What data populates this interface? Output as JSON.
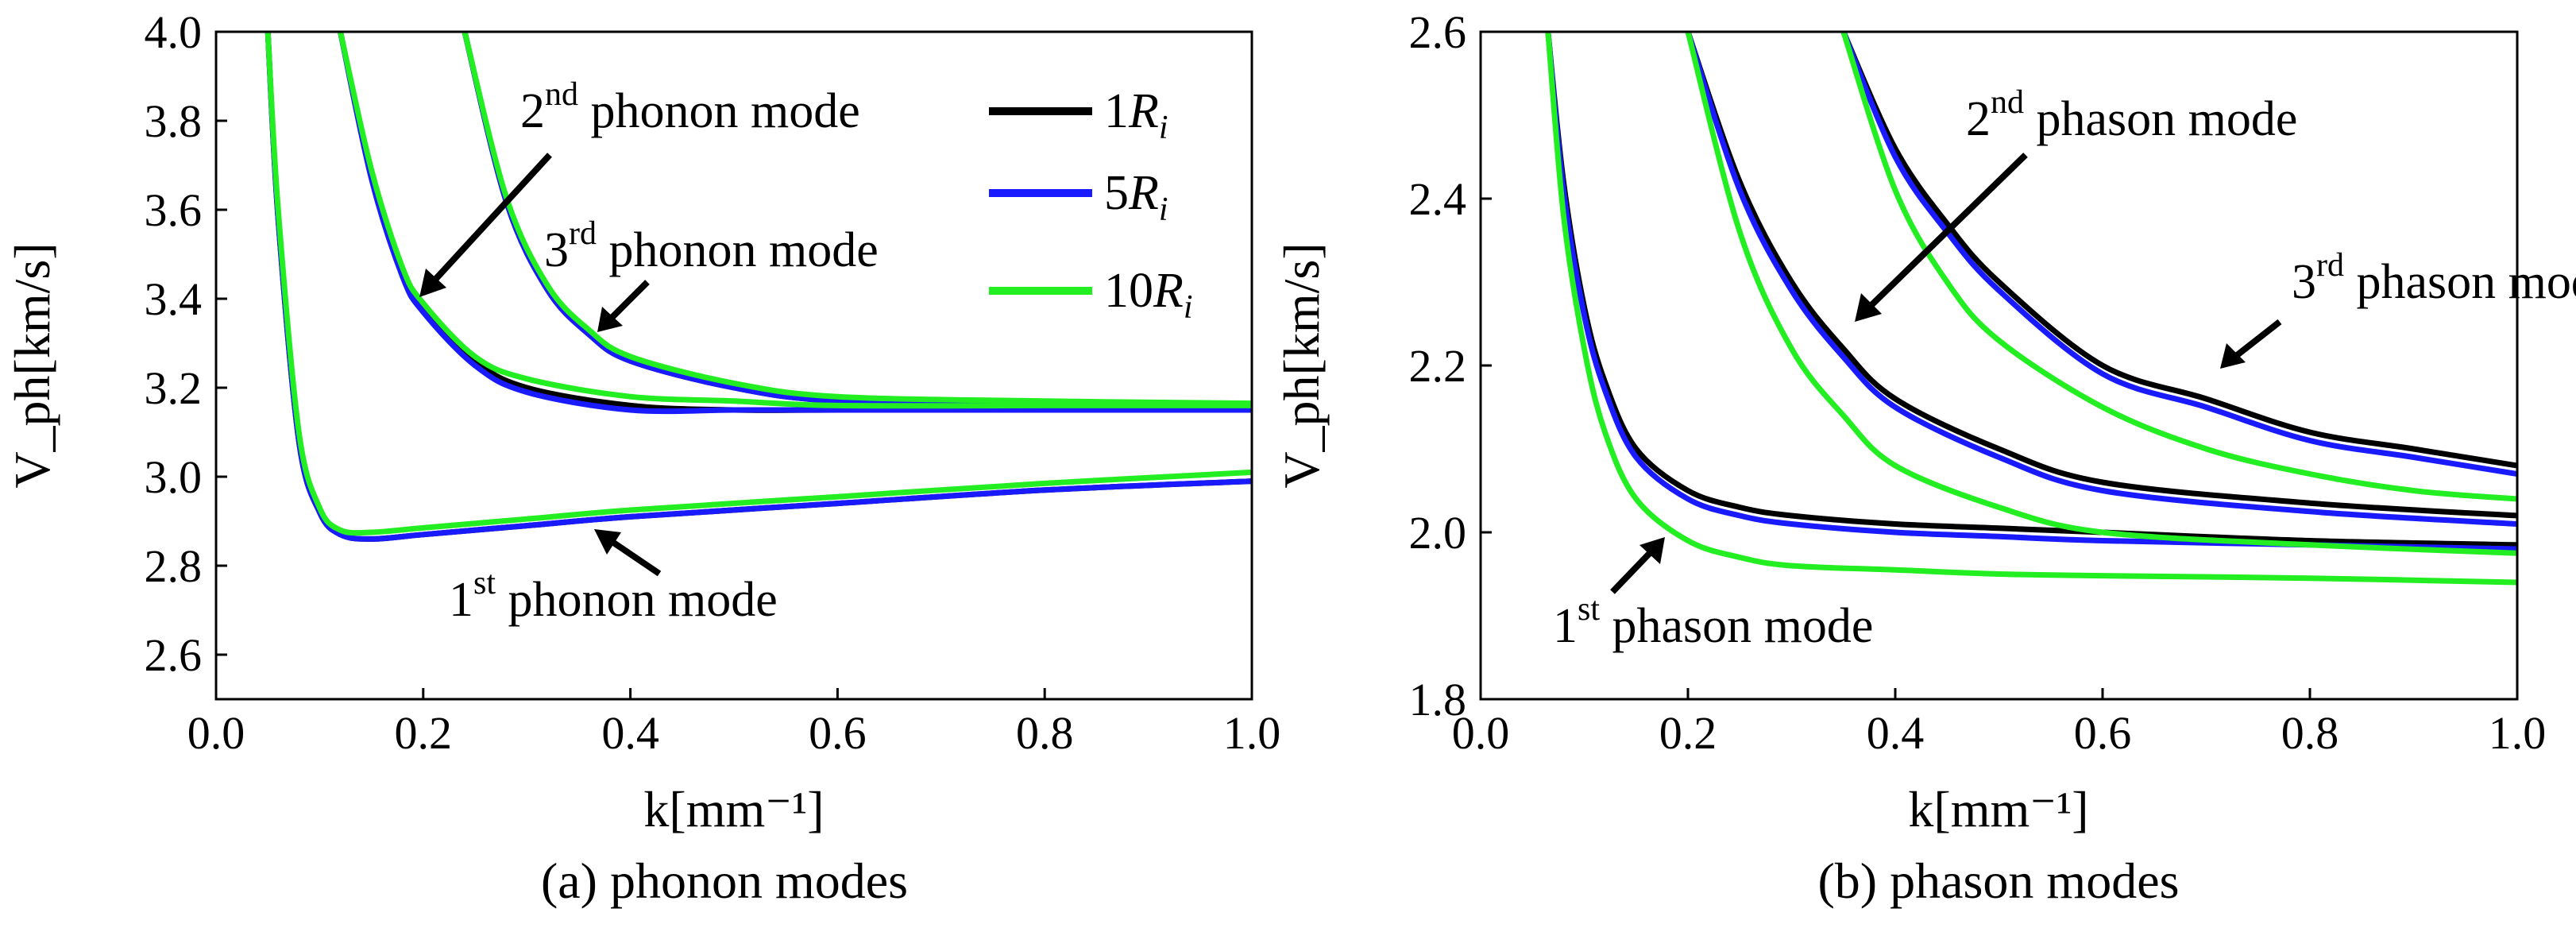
{
  "chart_data": [
    {
      "type": "line",
      "caption": "(a) phonon modes",
      "xlabel": "k[mm⁻¹]",
      "ylabel": "V_ph[km/s]",
      "xlim": [
        0.0,
        1.0
      ],
      "ylim": [
        2.5,
        4.0
      ],
      "xticks": [
        "0.0",
        "0.2",
        "0.4",
        "0.6",
        "0.8",
        "1.0"
      ],
      "xtick_values": [
        0.0,
        0.2,
        0.4,
        0.6,
        0.8,
        1.0
      ],
      "yticks": [
        "2.6",
        "2.8",
        "3.0",
        "3.2",
        "3.4",
        "3.6",
        "3.8",
        "4.0"
      ],
      "ytick_values": [
        2.6,
        2.8,
        3.0,
        3.2,
        3.4,
        3.6,
        3.8,
        4.0
      ],
      "legend": {
        "position": "top-right",
        "entries": [
          {
            "num": "1",
            "sym": "R",
            "sub": "i",
            "color": "#000000"
          },
          {
            "num": "5",
            "sym": "R",
            "sub": "i",
            "color": "#1a1aff"
          },
          {
            "num": "10",
            "sym": "R",
            "sub": "i",
            "color": "#22ee22"
          }
        ]
      },
      "annotations": [
        {
          "num": "1",
          "sup": "st",
          "text": " phonon mode"
        },
        {
          "num": "2",
          "sup": "nd",
          "text": " phonon mode"
        },
        {
          "num": "3",
          "sup": "rd",
          "text": " phonon mode"
        }
      ],
      "series": [
        {
          "name": "1R_i",
          "color": "#000000",
          "modes": [
            {
              "x": [
                0.05,
                0.06,
                0.08,
                0.1,
                0.12,
                0.15,
                0.2,
                0.3,
                0.4,
                0.6,
                0.8,
                1.0
              ],
              "y": [
                4.0,
                3.58,
                3.08,
                2.92,
                2.87,
                2.86,
                2.87,
                2.89,
                2.91,
                2.94,
                2.97,
                2.99
              ]
            },
            {
              "x": [
                0.12,
                0.15,
                0.18,
                0.2,
                0.25,
                0.3,
                0.4,
                0.5,
                0.6,
                0.8,
                1.0
              ],
              "y": [
                4.0,
                3.68,
                3.46,
                3.38,
                3.26,
                3.2,
                3.16,
                3.15,
                3.15,
                3.15,
                3.15
              ]
            },
            {
              "x": [
                0.24,
                0.28,
                0.32,
                0.36,
                0.4,
                0.5,
                0.6,
                0.8,
                1.0
              ],
              "y": [
                4.0,
                3.62,
                3.42,
                3.32,
                3.26,
                3.2,
                3.17,
                3.16,
                3.16
              ]
            }
          ]
        },
        {
          "name": "5R_i",
          "color": "#1a1aff",
          "modes": [
            {
              "x": [
                0.05,
                0.06,
                0.08,
                0.1,
                0.12,
                0.15,
                0.2,
                0.3,
                0.4,
                0.6,
                0.8,
                1.0
              ],
              "y": [
                4.0,
                3.58,
                3.08,
                2.92,
                2.87,
                2.86,
                2.87,
                2.89,
                2.91,
                2.94,
                2.97,
                2.99
              ]
            },
            {
              "x": [
                0.12,
                0.15,
                0.18,
                0.2,
                0.25,
                0.3,
                0.4,
                0.5,
                0.6,
                0.8,
                1.0
              ],
              "y": [
                4.0,
                3.67,
                3.45,
                3.37,
                3.25,
                3.19,
                3.15,
                3.15,
                3.15,
                3.15,
                3.15
              ]
            },
            {
              "x": [
                0.24,
                0.28,
                0.32,
                0.36,
                0.4,
                0.5,
                0.6,
                0.8,
                1.0
              ],
              "y": [
                4.0,
                3.62,
                3.42,
                3.32,
                3.26,
                3.2,
                3.17,
                3.16,
                3.16
              ]
            }
          ]
        },
        {
          "name": "10R_i",
          "color": "#22ee22",
          "modes": [
            {
              "x": [
                0.05,
                0.06,
                0.08,
                0.1,
                0.12,
                0.15,
                0.2,
                0.3,
                0.4,
                0.6,
                0.8,
                1.0
              ],
              "y": [
                4.0,
                3.6,
                3.1,
                2.93,
                2.88,
                2.875,
                2.885,
                2.905,
                2.925,
                2.955,
                2.985,
                3.01
              ]
            },
            {
              "x": [
                0.12,
                0.15,
                0.18,
                0.2,
                0.25,
                0.3,
                0.4,
                0.5,
                0.6,
                0.8,
                1.0
              ],
              "y": [
                4.0,
                3.69,
                3.47,
                3.39,
                3.27,
                3.22,
                3.18,
                3.17,
                3.16,
                3.16,
                3.16
              ]
            },
            {
              "x": [
                0.24,
                0.28,
                0.32,
                0.36,
                0.4,
                0.5,
                0.6,
                0.8,
                1.0
              ],
              "y": [
                4.0,
                3.63,
                3.43,
                3.33,
                3.27,
                3.21,
                3.18,
                3.17,
                3.165
              ]
            }
          ]
        }
      ]
    },
    {
      "type": "line",
      "caption": "(b) phason modes",
      "xlabel": "k[mm⁻¹]",
      "ylabel": "V_ph[km/s]",
      "xlim": [
        0.0,
        1.0
      ],
      "ylim": [
        1.8,
        2.6
      ],
      "xticks": [
        "0.0",
        "0.2",
        "0.4",
        "0.6",
        "0.8",
        "1.0"
      ],
      "xtick_values": [
        0.0,
        0.2,
        0.4,
        0.6,
        0.8,
        1.0
      ],
      "yticks": [
        "1.8",
        "2.0",
        "2.2",
        "2.4",
        "2.6"
      ],
      "ytick_values": [
        1.8,
        2.0,
        2.2,
        2.4,
        2.6
      ],
      "annotations": [
        {
          "num": "1",
          "sup": "st",
          "text": " phason mode"
        },
        {
          "num": "2",
          "sup": "nd",
          "text": " phason mode"
        },
        {
          "num": "3",
          "sup": "rd",
          "text": " phason mode"
        }
      ],
      "series": [
        {
          "name": "1R_i",
          "color": "#000000",
          "modes": [
            {
              "x": [
                0.065,
                0.08,
                0.1,
                0.12,
                0.15,
                0.2,
                0.25,
                0.3,
                0.4,
                0.5,
                0.6,
                0.8,
                1.0
              ],
              "y": [
                2.6,
                2.42,
                2.27,
                2.18,
                2.1,
                2.05,
                2.03,
                2.02,
                2.01,
                2.005,
                2.0,
                1.99,
                1.985
              ]
            },
            {
              "x": [
                0.2,
                0.25,
                0.3,
                0.35,
                0.4,
                0.5,
                0.6,
                0.8,
                1.0
              ],
              "y": [
                2.6,
                2.42,
                2.3,
                2.22,
                2.16,
                2.1,
                2.06,
                2.035,
                2.02
              ]
            },
            {
              "x": [
                0.35,
                0.4,
                0.45,
                0.5,
                0.6,
                0.7,
                0.8,
                0.9,
                1.0
              ],
              "y": [
                2.6,
                2.46,
                2.37,
                2.3,
                2.2,
                2.16,
                2.12,
                2.1,
                2.08
              ]
            }
          ]
        },
        {
          "name": "5R_i",
          "color": "#1a1aff",
          "modes": [
            {
              "x": [
                0.065,
                0.08,
                0.1,
                0.12,
                0.15,
                0.2,
                0.25,
                0.3,
                0.4,
                0.5,
                0.6,
                0.8,
                1.0
              ],
              "y": [
                2.6,
                2.41,
                2.26,
                2.17,
                2.09,
                2.04,
                2.02,
                2.01,
                2.0,
                1.995,
                1.99,
                1.985,
                1.98
              ]
            },
            {
              "x": [
                0.2,
                0.25,
                0.3,
                0.35,
                0.4,
                0.5,
                0.6,
                0.8,
                1.0
              ],
              "y": [
                2.6,
                2.41,
                2.29,
                2.21,
                2.15,
                2.09,
                2.05,
                2.025,
                2.01
              ]
            },
            {
              "x": [
                0.35,
                0.4,
                0.45,
                0.5,
                0.6,
                0.7,
                0.8,
                0.9,
                1.0
              ],
              "y": [
                2.6,
                2.45,
                2.36,
                2.29,
                2.19,
                2.15,
                2.11,
                2.09,
                2.07
              ]
            }
          ]
        },
        {
          "name": "10R_i",
          "color": "#22ee22",
          "modes": [
            {
              "x": [
                0.065,
                0.08,
                0.1,
                0.12,
                0.15,
                0.2,
                0.25,
                0.3,
                0.4,
                0.5,
                0.6,
                0.8,
                1.0
              ],
              "y": [
                2.6,
                2.38,
                2.22,
                2.12,
                2.04,
                1.99,
                1.97,
                1.96,
                1.955,
                1.95,
                1.948,
                1.945,
                1.94
              ]
            },
            {
              "x": [
                0.2,
                0.25,
                0.3,
                0.35,
                0.4,
                0.5,
                0.6,
                0.8,
                1.0
              ],
              "y": [
                2.6,
                2.36,
                2.22,
                2.14,
                2.08,
                2.03,
                2.0,
                1.985,
                1.975
              ]
            },
            {
              "x": [
                0.35,
                0.4,
                0.45,
                0.5,
                0.6,
                0.7,
                0.8,
                0.9,
                1.0
              ],
              "y": [
                2.6,
                2.41,
                2.3,
                2.23,
                2.15,
                2.1,
                2.07,
                2.05,
                2.04
              ]
            }
          ]
        }
      ]
    }
  ]
}
